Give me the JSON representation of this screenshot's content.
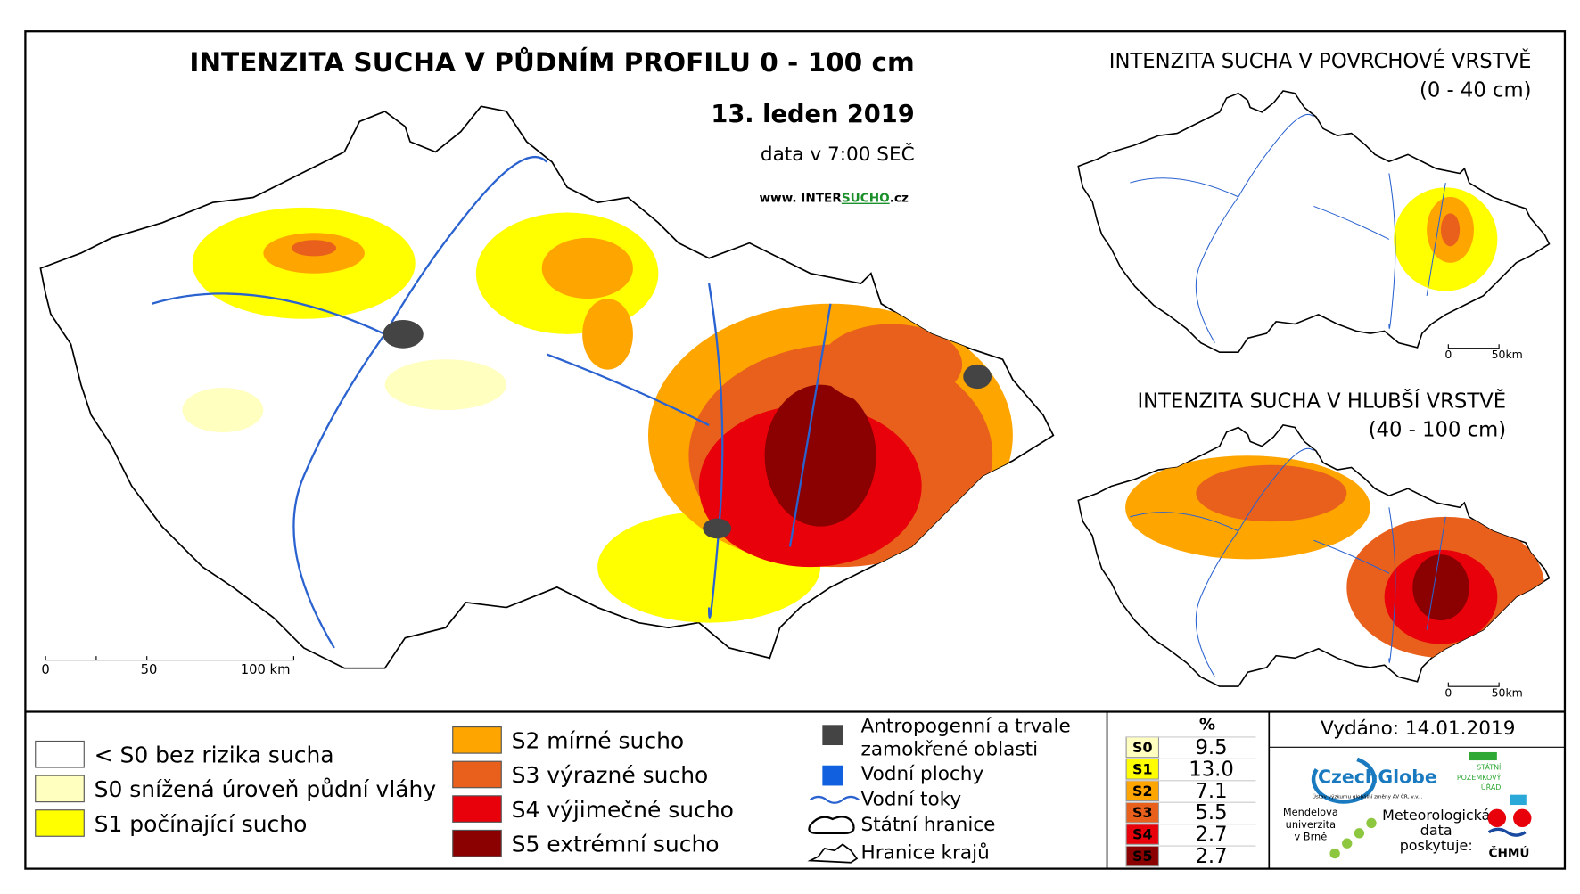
{
  "main_map": {
    "title": "INTENZITA SUCHA V PŮDNÍM PROFILU 0 - 100 cm",
    "date": "13. leden 2019",
    "data_time": "data v 7:00 SEČ",
    "website": [
      "www. INTER",
      "SUCHO",
      ".cz"
    ],
    "scale": [
      "0",
      "50",
      "100 km"
    ]
  },
  "inset_surface": {
    "title": "INTENZITA SUCHA V POVRCHOVÉ VRSTVĚ",
    "depth": "(0 - 40 cm)",
    "scale": [
      "0",
      "50km"
    ]
  },
  "inset_deep": {
    "title": "INTENZITA SUCHA V HLUBŠÍ VRSTVĚ",
    "depth": "(40 - 100 cm)",
    "scale": [
      "0",
      "50km"
    ]
  },
  "legend": {
    "classes": [
      {
        "label": "< S0 bez rizika sucha",
        "color": "#ffffff"
      },
      {
        "label": "S0 snížená úroveň půdní vláhy",
        "color": "#ffffc0"
      },
      {
        "label": "S1 počínající sucho",
        "color": "#ffff00"
      },
      {
        "label": "S2 mírné sucho",
        "color": "#ffa500"
      },
      {
        "label": "S3 výrazné sucho",
        "color": "#e8601c"
      },
      {
        "label": "S4 výjimečné sucho",
        "color": "#e8000b"
      },
      {
        "label": "S5 extrémní sucho",
        "color": "#8b0000"
      }
    ],
    "other": [
      [
        "Antropogenní a trvale",
        "zamokřené oblasti"
      ],
      [
        "Vodní plochy"
      ],
      [
        "Vodní toky"
      ],
      [
        "Státní hranice"
      ],
      [
        "Hranice krajů"
      ]
    ]
  },
  "stats_table": {
    "header": "%",
    "rows": [
      [
        "S0",
        "9.5"
      ],
      [
        "S1",
        "13.0"
      ],
      [
        "S2",
        "7.1"
      ],
      [
        "S3",
        "5.5"
      ],
      [
        "S4",
        "2.7"
      ],
      [
        "S5",
        "2.7"
      ]
    ]
  },
  "issued": "Vydáno: 14.01.2019",
  "logos": {
    "czechglobe": "CzechGlobe",
    "czechglobe_sub": "Ústav výzkumu globální změny AV ČR, v.v.i.",
    "mendel": [
      "Mendelova",
      "univerzita",
      "v Brně"
    ],
    "spu": [
      "STÁTNÍ",
      "POZEMKOVÝ",
      "ÚŘAD"
    ],
    "met": [
      "Meteorologická",
      "data",
      "poskytuje:"
    ],
    "chmu": "ČHMÚ"
  }
}
